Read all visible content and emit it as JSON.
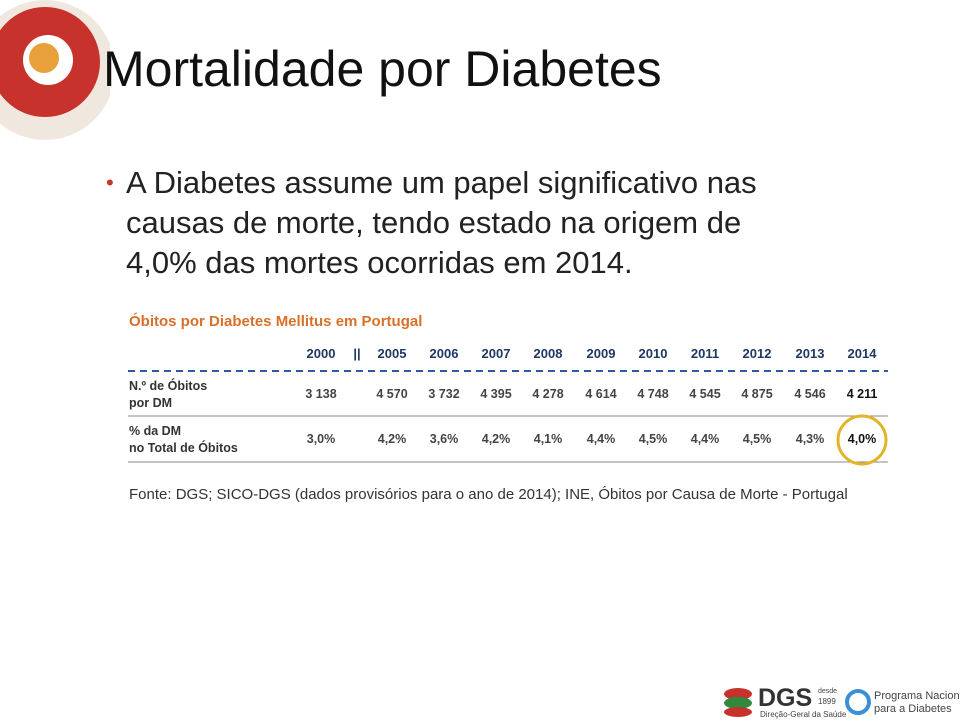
{
  "title": "Mortalidade por Diabetes",
  "bullet": {
    "lines": [
      "A Diabetes assume um papel significativo nas",
      "causas de morte, tendo estado na origem de",
      "4,0% das mortes ocorridas em 2014."
    ]
  },
  "table": {
    "caption": "Óbitos por Diabetes Mellitus em Portugal",
    "break_mark": "||",
    "header": [
      "2000",
      "2005",
      "2006",
      "2007",
      "2008",
      "2009",
      "2010",
      "2011",
      "2012",
      "2013",
      "2014"
    ],
    "rows": [
      {
        "label": [
          "N.º de Óbitos",
          "por DM"
        ],
        "cells": [
          "3 138",
          "4 570",
          "3 732",
          "4 395",
          "4 278",
          "4 614",
          "4 748",
          "4 545",
          "4 875",
          "4 546",
          "4 211"
        ]
      },
      {
        "label": [
          "% da DM",
          "no Total de Óbitos"
        ],
        "cells": [
          "3,0%",
          "4,2%",
          "3,6%",
          "4,2%",
          "4,1%",
          "4,4%",
          "4,5%",
          "4,4%",
          "4,5%",
          "4,3%",
          "4,0%"
        ]
      }
    ]
  },
  "source": "Fonte: DGS; SICO-DGS (dados provisórios para o ano de 2014); INE, Óbitos por Causa de Morte - Portugal",
  "footer": {
    "dgs": "DGS",
    "since": [
      "desde",
      "1899"
    ],
    "dgs_name": "Direção-Geral da Saúde",
    "program": [
      "Programa Nacional",
      "para a Diabetes"
    ]
  }
}
